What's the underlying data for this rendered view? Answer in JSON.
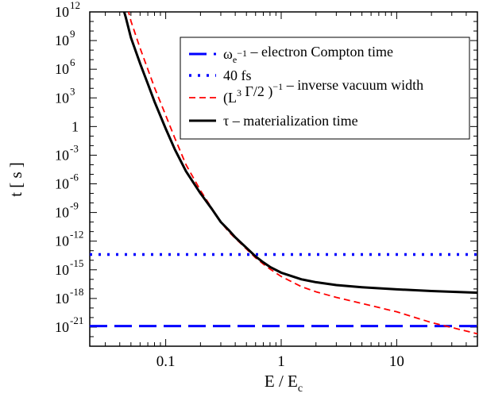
{
  "chart_data": {
    "type": "line",
    "xlabel": {
      "main": "E / E",
      "sub": "c"
    },
    "ylabel": "t [ s ]",
    "x_scale": "log",
    "y_scale": "log",
    "xlim": [
      0.022,
      50
    ],
    "ylim": [
      1e-23,
      1000000000000.0
    ],
    "x_ticks": [
      {
        "value": 0.1,
        "label": "0.1"
      },
      {
        "value": 1,
        "label": "1"
      },
      {
        "value": 10,
        "label": "10"
      }
    ],
    "y_ticks": [
      {
        "value": 1000000000000.0,
        "base": "10",
        "exp": "12"
      },
      {
        "value": 1000000000.0,
        "base": "10",
        "exp": "9"
      },
      {
        "value": 1000000.0,
        "base": "10",
        "exp": "6"
      },
      {
        "value": 1000.0,
        "base": "10",
        "exp": "3"
      },
      {
        "value": 1,
        "base": "1",
        "exp": ""
      },
      {
        "value": 0.001,
        "base": "10",
        "exp": "-3"
      },
      {
        "value": 1e-06,
        "base": "10",
        "exp": "-6"
      },
      {
        "value": 1e-09,
        "base": "10",
        "exp": "-9"
      },
      {
        "value": 1e-12,
        "base": "10",
        "exp": "-12"
      },
      {
        "value": 1e-15,
        "base": "10",
        "exp": "-15"
      },
      {
        "value": 1e-18,
        "base": "10",
        "exp": "-18"
      },
      {
        "value": 1e-21,
        "base": "10",
        "exp": "-21"
      }
    ],
    "legend_position": "top-right",
    "series": [
      {
        "key": "compton",
        "legend": [
          {
            "t": "ω",
            "s": ""
          },
          {
            "t": "e",
            "s": "sub"
          },
          {
            "t": "−1",
            "s": "sup"
          },
          {
            "t": " – electron Compton time",
            "s": ""
          }
        ],
        "color": "#0000ff",
        "dash": "22,9",
        "width": 3,
        "x": [
          0.022,
          50
        ],
        "y": [
          1.3e-21,
          1.3e-21
        ]
      },
      {
        "key": "fs40",
        "legend": [
          {
            "t": "40 fs",
            "s": ""
          }
        ],
        "color": "#0000ff",
        "dash": "3,8",
        "width": 3.5,
        "x": [
          0.022,
          50
        ],
        "y": [
          4e-14,
          4e-14
        ]
      },
      {
        "key": "inverse_width",
        "legend": [
          {
            "t": "(L",
            "s": ""
          },
          {
            "t": "3",
            "s": "sup"
          },
          {
            "t": " Γ/2 )",
            "s": ""
          },
          {
            "t": "−1",
            "s": "sup"
          },
          {
            "t": " – inverse vacuum width",
            "s": ""
          }
        ],
        "color": "#ff0000",
        "dash": "8,5",
        "width": 1.8,
        "x": [
          0.047,
          0.05,
          0.06,
          0.07,
          0.08,
          0.1,
          0.12,
          0.15,
          0.2,
          0.25,
          0.3,
          0.35,
          0.4,
          0.5,
          0.6,
          0.7,
          0.8,
          1.0,
          1.5,
          2,
          3,
          5,
          10,
          20,
          50
        ],
        "y": [
          2000000000000.0,
          110000000000.0,
          160000000.0,
          1000000.0,
          12000.0,
          15.0,
          0.06,
          0.0001,
          2e-07,
          3e-09,
          1e-10,
          1e-11,
          2e-12,
          1.5e-13,
          1.8e-14,
          4e-15,
          1.2e-15,
          2e-16,
          1.7e-17,
          5e-18,
          1.3e-18,
          3e-19,
          4e-20,
          3e-21,
          2e-22
        ]
      },
      {
        "key": "materialization",
        "legend": [
          {
            "t": "τ – materialization time",
            "s": ""
          }
        ],
        "color": "#000000",
        "dash": "",
        "width": 3,
        "x": [
          0.043,
          0.045,
          0.05,
          0.06,
          0.07,
          0.08,
          0.1,
          0.12,
          0.15,
          0.2,
          0.25,
          0.3,
          0.35,
          0.4,
          0.5,
          0.6,
          0.7,
          0.8,
          1.0,
          1.5,
          2,
          3,
          5,
          10,
          20,
          50
        ],
        "y": [
          2000000000000.0,
          300000000000.0,
          2000000000.0,
          4000000.0,
          30000.0,
          400.0,
          0.6,
          0.004,
          2e-05,
          1e-07,
          2.5e-09,
          1e-10,
          1.5e-11,
          2.5e-12,
          2e-13,
          2.5e-14,
          6e-15,
          2e-15,
          5e-16,
          1e-16,
          5e-17,
          2.5e-17,
          1.5e-17,
          9e-18,
          6e-18,
          4e-18
        ]
      }
    ]
  }
}
